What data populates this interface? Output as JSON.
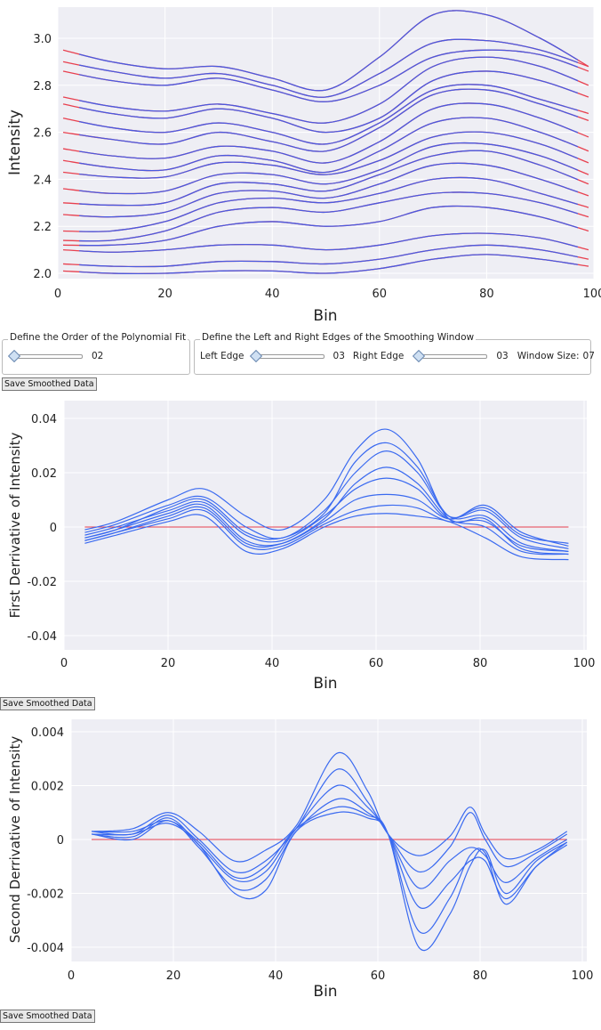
{
  "controls": {
    "poly_legend": "Define the Order of the Polynomial Fit",
    "poly_value": "02",
    "window_legend": "Define the Left and Right Edges of the Smoothing Window",
    "left_edge_label": "Left Edge",
    "left_edge_value": "03",
    "right_edge_label": "Right Edge",
    "right_edge_value": "03",
    "window_size_label": "Window Size:",
    "window_size_value": "07",
    "save_label": "Save Smoothed Data"
  },
  "colors": {
    "line_main": "#4a5ae0",
    "line_edge": "#e8404f",
    "line_deriv": "#3a6af0",
    "zero_line": "#e8404f",
    "plot_bg": "#eeeef4",
    "grid": "#ffffff"
  },
  "chart_data": [
    {
      "type": "line",
      "xlabel": "Bin",
      "ylabel": "Intensity",
      "xlim": [
        0,
        100
      ],
      "ylim": [
        2.0,
        3.1
      ],
      "xticks": [
        "0",
        "20",
        "40",
        "60",
        "80",
        "100"
      ],
      "yticks": [
        "2.0",
        "2.2",
        "2.4",
        "2.6",
        "2.8",
        "3.0"
      ],
      "grid": true,
      "edge_highlight_bins": [
        [
          0,
          4
        ],
        [
          97,
          100
        ]
      ],
      "x": [
        1,
        10,
        20,
        30,
        40,
        50,
        60,
        70,
        80,
        90,
        99
      ],
      "series": [
        {
          "values": [
            2.95,
            2.9,
            2.87,
            2.88,
            2.83,
            2.78,
            2.92,
            3.1,
            3.1,
            3.0,
            2.88
          ]
        },
        {
          "values": [
            2.9,
            2.86,
            2.83,
            2.85,
            2.8,
            2.75,
            2.85,
            2.98,
            2.99,
            2.95,
            2.88
          ]
        },
        {
          "values": [
            2.86,
            2.82,
            2.8,
            2.83,
            2.78,
            2.73,
            2.8,
            2.92,
            2.95,
            2.93,
            2.86
          ]
        },
        {
          "values": [
            2.75,
            2.71,
            2.69,
            2.72,
            2.68,
            2.64,
            2.72,
            2.88,
            2.92,
            2.88,
            2.8
          ]
        },
        {
          "values": [
            2.72,
            2.68,
            2.66,
            2.7,
            2.66,
            2.6,
            2.66,
            2.82,
            2.86,
            2.82,
            2.75
          ]
        },
        {
          "values": [
            2.66,
            2.62,
            2.6,
            2.64,
            2.6,
            2.55,
            2.64,
            2.78,
            2.8,
            2.74,
            2.68
          ]
        },
        {
          "values": [
            2.6,
            2.57,
            2.55,
            2.6,
            2.56,
            2.52,
            2.62,
            2.76,
            2.78,
            2.72,
            2.65
          ]
        },
        {
          "values": [
            2.53,
            2.5,
            2.49,
            2.54,
            2.52,
            2.47,
            2.56,
            2.7,
            2.72,
            2.66,
            2.58
          ]
        },
        {
          "values": [
            2.48,
            2.45,
            2.44,
            2.5,
            2.48,
            2.43,
            2.52,
            2.64,
            2.66,
            2.6,
            2.52
          ]
        },
        {
          "values": [
            2.43,
            2.41,
            2.41,
            2.47,
            2.46,
            2.42,
            2.48,
            2.58,
            2.6,
            2.55,
            2.47
          ]
        },
        {
          "values": [
            2.36,
            2.34,
            2.35,
            2.42,
            2.42,
            2.38,
            2.44,
            2.54,
            2.55,
            2.5,
            2.42
          ]
        },
        {
          "values": [
            2.3,
            2.29,
            2.3,
            2.38,
            2.38,
            2.35,
            2.42,
            2.5,
            2.52,
            2.46,
            2.38
          ]
        },
        {
          "values": [
            2.25,
            2.24,
            2.26,
            2.34,
            2.35,
            2.32,
            2.38,
            2.46,
            2.46,
            2.4,
            2.33
          ]
        },
        {
          "values": [
            2.18,
            2.18,
            2.22,
            2.3,
            2.32,
            2.3,
            2.34,
            2.4,
            2.4,
            2.34,
            2.28
          ]
        },
        {
          "values": [
            2.14,
            2.14,
            2.18,
            2.26,
            2.28,
            2.26,
            2.3,
            2.34,
            2.34,
            2.3,
            2.24
          ]
        },
        {
          "values": [
            2.12,
            2.12,
            2.14,
            2.2,
            2.22,
            2.2,
            2.22,
            2.28,
            2.28,
            2.24,
            2.18
          ]
        },
        {
          "values": [
            2.1,
            2.09,
            2.1,
            2.12,
            2.12,
            2.1,
            2.12,
            2.16,
            2.17,
            2.15,
            2.1
          ]
        },
        {
          "values": [
            2.04,
            2.03,
            2.03,
            2.05,
            2.05,
            2.04,
            2.06,
            2.1,
            2.12,
            2.1,
            2.06
          ]
        },
        {
          "values": [
            2.01,
            2.0,
            2.0,
            2.01,
            2.01,
            2.0,
            2.02,
            2.06,
            2.08,
            2.06,
            2.03
          ]
        }
      ]
    },
    {
      "type": "line",
      "xlabel": "Bin",
      "ylabel": "First Derrivative of Intensity",
      "xlim": [
        0,
        100
      ],
      "ylim": [
        -0.045,
        0.045
      ],
      "xticks": [
        "0",
        "20",
        "40",
        "60",
        "80",
        "100"
      ],
      "yticks": [
        "-0.04",
        "-0.02",
        "0",
        "0.02",
        "0.04"
      ],
      "ytick_values": [
        -0.04,
        -0.02,
        0,
        0.02,
        0.04
      ],
      "grid": true,
      "zero_line": true,
      "x": [
        4,
        10,
        20,
        27,
        35,
        42,
        50,
        56,
        62,
        68,
        74,
        81,
        88,
        97
      ],
      "series": [
        {
          "values": [
            -0.001,
            0.002,
            0.01,
            0.014,
            0.004,
            -0.001,
            0.01,
            0.028,
            0.036,
            0.025,
            0.003,
            0.003,
            -0.008,
            -0.01
          ]
        },
        {
          "values": [
            -0.002,
            0.001,
            0.008,
            0.011,
            0.0,
            -0.004,
            0.006,
            0.02,
            0.028,
            0.02,
            0.004,
            0.006,
            -0.004,
            -0.008
          ]
        },
        {
          "values": [
            -0.003,
            0.0,
            0.006,
            0.009,
            -0.003,
            -0.005,
            0.004,
            0.014,
            0.018,
            0.014,
            0.003,
            0.008,
            -0.002,
            -0.007
          ]
        },
        {
          "values": [
            -0.004,
            -0.001,
            0.005,
            0.008,
            -0.005,
            -0.006,
            0.002,
            0.01,
            0.012,
            0.01,
            0.003,
            0.007,
            -0.003,
            -0.006
          ]
        },
        {
          "values": [
            -0.005,
            -0.002,
            0.003,
            0.006,
            -0.007,
            -0.007,
            0.001,
            0.006,
            0.008,
            0.007,
            0.002,
            0.002,
            -0.007,
            -0.009
          ]
        },
        {
          "values": [
            -0.006,
            -0.003,
            0.002,
            0.004,
            -0.009,
            -0.008,
            0.0,
            0.004,
            0.005,
            0.004,
            0.002,
            -0.004,
            -0.011,
            -0.012
          ]
        },
        {
          "values": [
            -0.005,
            -0.002,
            0.004,
            0.007,
            -0.006,
            -0.006,
            0.003,
            0.016,
            0.022,
            0.016,
            0.003,
            0.0,
            -0.009,
            -0.01
          ]
        },
        {
          "values": [
            -0.004,
            -0.001,
            0.007,
            0.01,
            -0.002,
            -0.004,
            0.005,
            0.024,
            0.031,
            0.022,
            0.004,
            0.004,
            -0.006,
            -0.009
          ]
        }
      ]
    },
    {
      "type": "line",
      "xlabel": "Bin",
      "ylabel": "Second Derrivative of Intensity",
      "xlim": [
        0,
        100
      ],
      "ylim": [
        -0.0045,
        0.0045
      ],
      "xticks": [
        "0",
        "20",
        "40",
        "60",
        "80",
        "100"
      ],
      "yticks": [
        "-0.004",
        "-0.002",
        "0",
        "0.002",
        "0.004"
      ],
      "ytick_values": [
        -0.004,
        -0.002,
        0,
        0.002,
        0.004
      ],
      "grid": true,
      "zero_line": true,
      "x": [
        4,
        12,
        19,
        25,
        32,
        38,
        44,
        52,
        58,
        62,
        68,
        74,
        78,
        81,
        85,
        91,
        97
      ],
      "series": [
        {
          "values": [
            0.0003,
            0.0004,
            0.001,
            0.0003,
            -0.0008,
            -0.0004,
            0.0005,
            0.0032,
            0.0018,
            0.0002,
            -0.0006,
            0.0001,
            0.0012,
            0.0002,
            -0.0007,
            -0.0004,
            0.0003
          ]
        },
        {
          "values": [
            0.0003,
            0.0002,
            0.0009,
            0.0,
            -0.0012,
            -0.0008,
            0.0004,
            0.0026,
            0.0014,
            0.0002,
            -0.0012,
            -0.0003,
            0.001,
            0.0,
            -0.001,
            -0.0005,
            0.0002
          ]
        },
        {
          "values": [
            0.0002,
            0.0001,
            0.0008,
            -0.0002,
            -0.0015,
            -0.0012,
            0.0004,
            0.002,
            0.0012,
            0.0002,
            -0.0018,
            -0.0008,
            -0.0003,
            -0.0006,
            -0.0016,
            -0.0007,
            0.0
          ]
        },
        {
          "values": [
            0.0002,
            0.0,
            0.0007,
            -0.0003,
            -0.0018,
            -0.0015,
            0.0003,
            0.0015,
            0.001,
            0.0002,
            -0.0025,
            -0.0016,
            -0.0008,
            -0.0008,
            -0.0022,
            -0.001,
            -0.0001
          ]
        },
        {
          "values": [
            0.0002,
            0.0002,
            0.0006,
            -0.0002,
            -0.002,
            -0.0019,
            0.0003,
            0.001,
            0.0008,
            0.0002,
            -0.0034,
            -0.0022,
            -0.0006,
            -0.0005,
            -0.0024,
            -0.001,
            -0.0002
          ]
        },
        {
          "values": [
            0.0003,
            0.0003,
            0.0007,
            -0.0001,
            -0.0014,
            -0.001,
            0.0004,
            0.0012,
            0.0009,
            0.0002,
            -0.004,
            -0.0028,
            -0.001,
            -0.0004,
            -0.002,
            -0.0008,
            -0.0001
          ]
        }
      ]
    }
  ]
}
